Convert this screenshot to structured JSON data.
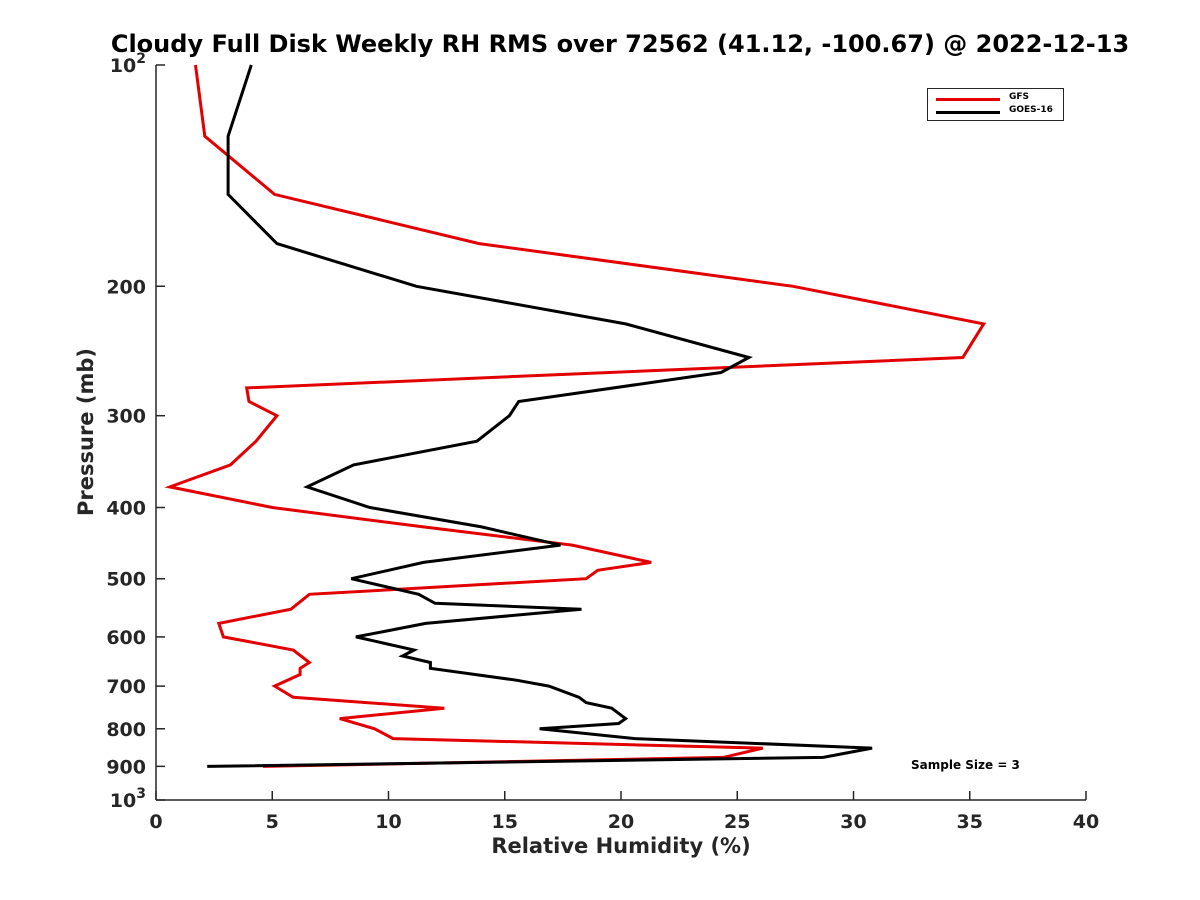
{
  "chart_data": {
    "type": "line",
    "title": "Cloudy Full Disk Weekly RH RMS over 72562 (41.12, -100.67) @ 2022-12-13",
    "xlabel": "Relative Humidity (%)",
    "ylabel": "Pressure (mb)",
    "xlim": [
      0,
      40
    ],
    "ylim": [
      100,
      1000
    ],
    "yscale": "log",
    "y_reversed": true,
    "grid": false,
    "legend_position": "top-right",
    "x_ticks": [
      "0",
      "5",
      "10",
      "15",
      "20",
      "25",
      "30",
      "35",
      "40"
    ],
    "y_ticks": [
      {
        "value": 100,
        "label": "10",
        "exp": "2"
      },
      {
        "value": 200,
        "label": "200"
      },
      {
        "value": 300,
        "label": "300"
      },
      {
        "value": 400,
        "label": "400"
      },
      {
        "value": 500,
        "label": "500"
      },
      {
        "value": 600,
        "label": "600"
      },
      {
        "value": 700,
        "label": "700"
      },
      {
        "value": 800,
        "label": "800"
      },
      {
        "value": 900,
        "label": "900"
      },
      {
        "value": 1000,
        "label": "10",
        "exp": "3"
      }
    ],
    "series": [
      {
        "name": "GFS",
        "color": "#e30000",
        "points": [
          [
            1.7,
            100
          ],
          [
            2.1,
            125
          ],
          [
            5.1,
            150
          ],
          [
            13.9,
            175
          ],
          [
            27.4,
            200
          ],
          [
            35.6,
            225
          ],
          [
            34.7,
            250
          ],
          [
            3.9,
            275
          ],
          [
            4.0,
            287
          ],
          [
            5.2,
            300
          ],
          [
            4.3,
            325
          ],
          [
            3.2,
            350
          ],
          [
            0.6,
            375
          ],
          [
            5.0,
            400
          ],
          [
            11.5,
            425
          ],
          [
            17.9,
            450
          ],
          [
            21.3,
            475
          ],
          [
            19.0,
            487
          ],
          [
            18.5,
            500
          ],
          [
            6.6,
            525
          ],
          [
            5.8,
            550
          ],
          [
            2.7,
            575
          ],
          [
            2.9,
            600
          ],
          [
            5.9,
            625
          ],
          [
            6.6,
            650
          ],
          [
            6.2,
            662
          ],
          [
            6.2,
            675
          ],
          [
            5.1,
            700
          ],
          [
            5.9,
            725
          ],
          [
            12.4,
            750
          ],
          [
            7.9,
            775
          ],
          [
            9.4,
            800
          ],
          [
            10.2,
            825
          ],
          [
            26.1,
            850
          ],
          [
            24.4,
            875
          ],
          [
            4.6,
            900
          ]
        ]
      },
      {
        "name": "GOES-16",
        "color": "#000000",
        "points": [
          [
            4.1,
            100
          ],
          [
            3.1,
            125
          ],
          [
            3.1,
            150
          ],
          [
            5.2,
            175
          ],
          [
            11.2,
            200
          ],
          [
            20.2,
            225
          ],
          [
            25.5,
            250
          ],
          [
            24.3,
            262
          ],
          [
            15.6,
            287
          ],
          [
            15.2,
            300
          ],
          [
            13.8,
            325
          ],
          [
            8.5,
            350
          ],
          [
            6.5,
            375
          ],
          [
            9.2,
            400
          ],
          [
            14.0,
            425
          ],
          [
            17.4,
            450
          ],
          [
            11.5,
            475
          ],
          [
            8.4,
            500
          ],
          [
            11.3,
            525
          ],
          [
            12.0,
            540
          ],
          [
            18.3,
            550
          ],
          [
            11.6,
            575
          ],
          [
            8.6,
            600
          ],
          [
            11.1,
            625
          ],
          [
            10.6,
            637
          ],
          [
            11.8,
            650
          ],
          [
            11.8,
            662
          ],
          [
            15.5,
            687
          ],
          [
            16.9,
            700
          ],
          [
            18.2,
            725
          ],
          [
            18.5,
            737
          ],
          [
            19.6,
            750
          ],
          [
            20.2,
            775
          ],
          [
            19.9,
            787
          ],
          [
            16.5,
            800
          ],
          [
            20.6,
            825
          ],
          [
            30.8,
            850
          ],
          [
            28.7,
            875
          ],
          [
            2.2,
            900
          ]
        ]
      }
    ],
    "legend": [
      "GFS",
      "GOES-16"
    ],
    "annotation": "Sample Size = 3"
  }
}
